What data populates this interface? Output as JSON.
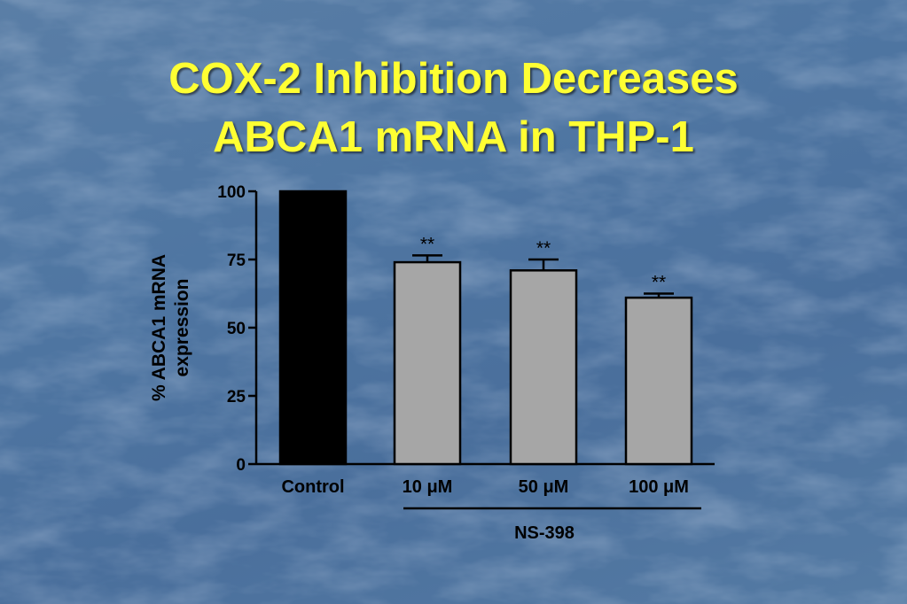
{
  "slide": {
    "title_line1": "COX-2 Inhibition Decreases",
    "title_line2": "ABCA1 mRNA in THP-1",
    "title_color": "#ffff33",
    "background_color": "#4f76a2"
  },
  "chart_data": {
    "type": "bar",
    "title": "",
    "ylabel": [
      "% ABCA1 mRNA",
      "expression"
    ],
    "xlabel": "",
    "categories": [
      "Control",
      "10 μM",
      "50 μM",
      "100 μM"
    ],
    "values": [
      100,
      74,
      71,
      61
    ],
    "errors": [
      0,
      2.5,
      4,
      1.5
    ],
    "bar_colors": [
      "#000000",
      "#a6a6a6",
      "#a6a6a6",
      "#a6a6a6"
    ],
    "significance": [
      "",
      "**",
      "**",
      "**"
    ],
    "ylim": [
      0,
      100
    ],
    "yticks": [
      0,
      25,
      50,
      75,
      100
    ],
    "group_label": "NS-398",
    "group_span": [
      "10 μM",
      "100 μM"
    ],
    "grid": false,
    "legend": "none"
  }
}
